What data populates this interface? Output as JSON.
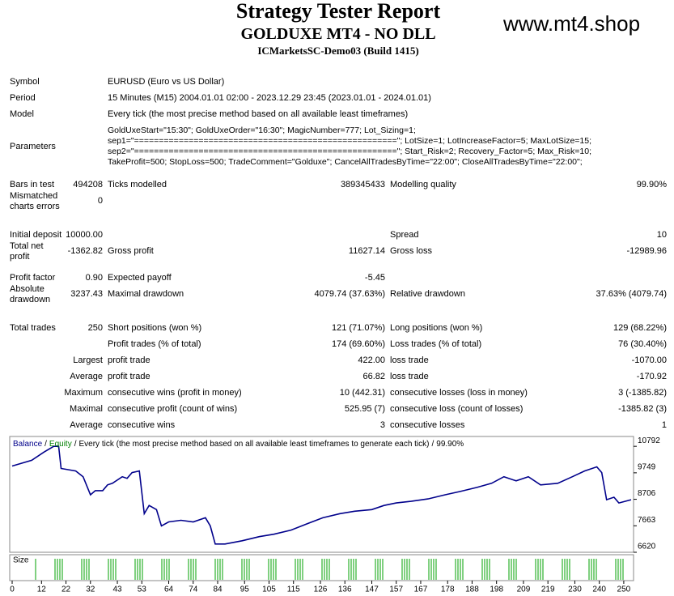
{
  "header": {
    "title": "Strategy Tester Report",
    "subtitle": "GOLDUXE MT4 - NO DLL",
    "account": "ICMarketsSC-Demo03 (Build 1415)",
    "site": "www.mt4.shop"
  },
  "info": [
    {
      "label": "Symbol",
      "value": "EURUSD (Euro vs US Dollar)"
    },
    {
      "label": "Period",
      "value": "15 Minutes (M15) 2004.01.01 02:00 - 2023.12.29 23:45 (2023.01.01 - 2024.01.01)"
    },
    {
      "label": "Model",
      "value": "Every tick (the most precise method based on all available least timeframes)"
    }
  ],
  "parameters": {
    "label": "Parameters",
    "lines": [
      "GoldUxeStart=\"15:30\"; GoldUxeOrder=\"16:30\"; MagicNumber=777; Lot_Sizing=1;",
      "sep1=\"=====================================================\"; LotSize=1; LotIncreaseFactor=5; MaxLotSize=15;",
      "sep2=\"=====================================================\"; Start_Risk=2; Recovery_Factor=5; Max_Risk=10;",
      "TakeProfit=500; StopLoss=500; TradeComment=\"Golduxe\"; CancelAllTradesByTime=\"22:00\"; CloseAllTradesByTime=\"22:00\";"
    ]
  },
  "stats": [
    {
      "c1": [
        "Bars in test",
        "494208"
      ],
      "c2": [
        "Ticks modelled",
        "389345433"
      ],
      "c3": [
        "Modelling quality",
        "99.90%"
      ]
    },
    {
      "c1": [
        "Mismatched charts errors",
        "0"
      ]
    },
    {
      "c1": [
        "Initial deposit",
        "10000.00"
      ],
      "c3": [
        "Spread",
        "10"
      ]
    },
    {
      "c1": [
        "Total net profit",
        "-1362.82"
      ],
      "c2": [
        "Gross profit",
        "11627.14"
      ],
      "c3": [
        "Gross loss",
        "-12989.96"
      ]
    },
    {
      "c1": [
        "Profit factor",
        "0.90"
      ],
      "c2": [
        "Expected payoff",
        "-5.45"
      ]
    },
    {
      "c1": [
        "Absolute drawdown",
        "3237.43"
      ],
      "c2": [
        "Maximal drawdown",
        "4079.74 (37.63%)"
      ],
      "c3": [
        "Relative drawdown",
        "37.63% (4079.74)"
      ]
    },
    {
      "c1": [
        "Total trades",
        "250"
      ],
      "c2": [
        "Short positions (won %)",
        "121 (71.07%)"
      ],
      "c3": [
        "Long positions (won %)",
        "129 (68.22%)"
      ]
    },
    {
      "c2": [
        "Profit trades (% of total)",
        "174 (69.60%)"
      ],
      "c3": [
        "Loss trades (% of total)",
        "76 (30.40%)"
      ]
    },
    {
      "prefix": "Largest",
      "c2": [
        "profit trade",
        "422.00"
      ],
      "c3": [
        "loss trade",
        "-1070.00"
      ]
    },
    {
      "prefix": "Average",
      "c2": [
        "profit trade",
        "66.82"
      ],
      "c3": [
        "loss trade",
        "-170.92"
      ]
    },
    {
      "prefix": "Maximum",
      "c2": [
        "consecutive wins (profit in money)",
        "10 (442.31)"
      ],
      "c3": [
        "consecutive losses (loss in money)",
        "3 (-1385.82)"
      ]
    },
    {
      "prefix": "Maximal",
      "c2": [
        "consecutive profit (count of wins)",
        "525.95 (7)"
      ],
      "c3": [
        "consecutive loss (count of losses)",
        "-1385.82 (3)"
      ]
    },
    {
      "prefix": "Average",
      "c2": [
        "consecutive wins",
        "3"
      ],
      "c3": [
        "consecutive losses",
        "1"
      ]
    }
  ],
  "chart_data": {
    "type": "line",
    "series": [
      {
        "name": "Balance",
        "color": "#00008b",
        "values": [
          10016,
          10242,
          10566,
          10792,
          10792,
          9919,
          9822,
          9595,
          8884,
          9046,
          9046,
          9272,
          9337,
          9595,
          9531,
          9757,
          9822,
          8140,
          8464,
          8302,
          7655,
          7817,
          7881,
          7817,
          7979,
          7655,
          6944,
          6944,
          7073,
          7235,
          7332,
          7493,
          7720,
          7979,
          8140,
          8237,
          8302,
          8464,
          8561,
          8625,
          8722,
          8884,
          9013,
          9175,
          9337,
          9595,
          9434,
          9595,
          9272,
          9337,
          9595,
          9822,
          9984,
          9757,
          8690,
          8787,
          8561,
          8690
        ]
      }
    ],
    "x": [
      0,
      8,
      13,
      17,
      19,
      20,
      26,
      29,
      32,
      34,
      37,
      39,
      41,
      45,
      47,
      49,
      52,
      54,
      56,
      59,
      61,
      64,
      69,
      74,
      79,
      81,
      83,
      87,
      94,
      101,
      107,
      114,
      120,
      127,
      134,
      140,
      147,
      152,
      157,
      163,
      170,
      177,
      183,
      190,
      196,
      201,
      206,
      211,
      216,
      223,
      229,
      234,
      239,
      241,
      243,
      246,
      248,
      253
    ],
    "legend_extra": [
      {
        "name": "Equity",
        "color": "#008000"
      }
    ],
    "separator": "/",
    "note": "Every tick (the most precise method based on all available least timeframes to generate each tick)",
    "quality": "99.90%",
    "volume_label": "Size",
    "xlim": [
      -1,
      254
    ],
    "ylim": [
      6620,
      11180
    ],
    "xticks": [
      0,
      12,
      22,
      32,
      43,
      53,
      64,
      74,
      84,
      95,
      105,
      115,
      126,
      136,
      147,
      157,
      167,
      178,
      188,
      198,
      209,
      219,
      230,
      240,
      250
    ],
    "yticks": [
      6620,
      7663,
      8706,
      9749,
      10792
    ]
  }
}
